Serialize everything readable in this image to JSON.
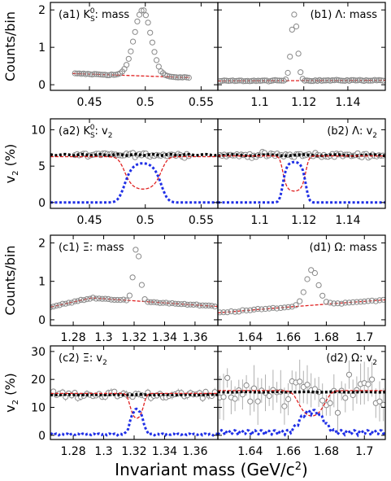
{
  "figure": {
    "xlabel_main": "Invariant mass (GeV/c",
    "xlabel_sup": "2",
    "xlabel_close": ")"
  },
  "row_labels": [
    {
      "main": "Counts/bin",
      "sub": ""
    },
    {
      "main": "v",
      "sub": "2",
      "rest": " (%)"
    },
    {
      "main": "Counts/bin",
      "sub": ""
    },
    {
      "main": "v",
      "sub": "2",
      "rest": " (%)"
    }
  ],
  "colors": {
    "data": "#888888",
    "sig_v2": "#1f2fe6",
    "bkg": "#e02020",
    "total": "#000000"
  },
  "chart_data": [
    {
      "id": "a1",
      "type": "scatter",
      "label_prefix": "(a1) K",
      "label_sub": "S",
      "label_sup": "0",
      "label_suffix": ": mass",
      "xlim": [
        0.415,
        0.565
      ],
      "ylim": [
        -0.15,
        2.2
      ],
      "xticks": [
        0.45,
        0.5,
        0.55
      ],
      "xticklabels": [
        "0.45",
        "0.5",
        "0.55"
      ],
      "yticks": [
        0,
        1,
        2
      ],
      "yticklabels": [
        "0",
        "1",
        "2"
      ],
      "peak": {
        "mu": 0.4976,
        "sigma": 0.0075,
        "amp": 1.76
      },
      "background": {
        "a": 0.3,
        "b": -0.11,
        "x0": 0.435,
        "x1": 0.54
      },
      "points": {
        "x0": 0.437,
        "x1": 0.539,
        "n": 54
      }
    },
    {
      "id": "b1",
      "type": "scatter",
      "label_prefix": "(b1) Λ: mass",
      "xlim": [
        1.081,
        1.157
      ],
      "ylim": [
        -0.15,
        2.2
      ],
      "xticks": [
        1.1,
        1.12,
        1.14
      ],
      "xticklabels": [
        "1.1",
        "1.12",
        "1.14"
      ],
      "yticks": [
        0,
        1,
        2
      ],
      "peak": {
        "mu": 1.1157,
        "sigma": 0.0014,
        "amp": 1.78
      },
      "background": {
        "a": 0.1,
        "b": 0.02,
        "x0": 1.081,
        "x1": 1.157
      },
      "points": {
        "x0": 1.082,
        "x1": 1.156,
        "n": 78
      }
    },
    {
      "id": "a2",
      "type": "line",
      "label_prefix": "(a2) K",
      "label_sub": "S",
      "label_sup": "0",
      "label_suffix": ": v",
      "label_sub2": "2",
      "xlim": [
        0.415,
        0.565
      ],
      "ylim": [
        -0.8,
        11.5
      ],
      "xticks": [
        0.45,
        0.5,
        0.55
      ],
      "xticklabels": [
        "0.45",
        "0.5",
        "0.55"
      ],
      "yticks": [
        0,
        5,
        10
      ],
      "yticklabels": [
        "0",
        "5",
        "10"
      ],
      "v2_total": 6.55,
      "v2_sig": 6.1,
      "v2_bkg": 6.3,
      "peak": {
        "mu": 0.4976,
        "sigma": 0.0075,
        "amp": 1.76
      },
      "background": {
        "a": 0.3,
        "b": -0.11,
        "x0": 0.435,
        "x1": 0.54
      },
      "line_range": [
        0.415,
        0.565
      ],
      "points": {
        "x0": 0.437,
        "x1": 0.539,
        "n": 54,
        "noise": 0.25
      }
    },
    {
      "id": "b2",
      "type": "line",
      "label_prefix": "(b2) Λ: v",
      "label_sub2": "2",
      "xlim": [
        1.081,
        1.157
      ],
      "ylim": [
        -0.8,
        11.5
      ],
      "xticks": [
        1.1,
        1.12,
        1.14
      ],
      "xticklabels": [
        "1.1",
        "1.12",
        "1.14"
      ],
      "yticks": [
        0,
        5,
        10
      ],
      "v2_total": 6.5,
      "v2_sig": 5.9,
      "v2_bkg": 6.4,
      "peak": {
        "mu": 1.1157,
        "sigma": 0.0021,
        "amp": 1.78
      },
      "background": {
        "a": 0.1,
        "b": 0.02,
        "x0": 1.081,
        "x1": 1.157
      },
      "line_range": [
        1.081,
        1.157
      ],
      "points": {
        "x0": 1.082,
        "x1": 1.156,
        "n": 78,
        "noise": 0.3
      }
    },
    {
      "id": "c1",
      "type": "scatter",
      "label_prefix": "(c1) Ξ: mass",
      "xlim": [
        1.265,
        1.375
      ],
      "ylim": [
        -0.15,
        2.2
      ],
      "xticks": [
        1.28,
        1.3,
        1.32,
        1.34,
        1.36
      ],
      "xticklabels": [
        "1.28",
        "1.3",
        "1.32",
        "1.34",
        "1.36"
      ],
      "yticks": [
        0,
        1,
        2
      ],
      "yticklabels": [
        "0",
        "1",
        "2"
      ],
      "peak": {
        "mu": 1.3217,
        "sigma": 0.0021,
        "amp": 1.4
      },
      "background": {
        "shape": "xi"
      },
      "points": {
        "x0": 1.265,
        "x1": 1.373,
        "n": 55
      }
    },
    {
      "id": "d1",
      "type": "scatter",
      "label_prefix": "(d1) Ω: mass",
      "xlim": [
        1.623,
        1.711
      ],
      "ylim": [
        -0.15,
        2.2
      ],
      "xticks": [
        1.64,
        1.66,
        1.68,
        1.7
      ],
      "xticklabels": [
        "1.64",
        "1.66",
        "1.68",
        "1.7"
      ],
      "yticks": [
        0,
        1,
        2
      ],
      "peak": {
        "mu": 1.6725,
        "sigma": 0.0033,
        "amp": 0.92
      },
      "background": {
        "shape": "omega"
      },
      "points": {
        "x0": 1.624,
        "x1": 1.71,
        "n": 44
      }
    },
    {
      "id": "c2",
      "type": "line",
      "label_prefix": "(c2) Ξ: v",
      "label_sub2": "2",
      "xlim": [
        1.265,
        1.375
      ],
      "ylim": [
        -1.5,
        32
      ],
      "xticks": [
        1.28,
        1.3,
        1.32,
        1.34,
        1.36
      ],
      "xticklabels": [
        "1.28",
        "1.3",
        "1.32",
        "1.34",
        "1.36"
      ],
      "yticks": [
        0,
        10,
        20,
        30
      ],
      "yticklabels": [
        "0",
        "10",
        "20",
        "30"
      ],
      "v2_total": 14.5,
      "v2_sig": 12.0,
      "v2_bkg": 15.0,
      "peak": {
        "mu": 1.3217,
        "sigma": 0.0025,
        "amp": 1.4
      },
      "background": {
        "shape": "xi"
      },
      "line_range": [
        1.265,
        1.375
      ],
      "points": {
        "x0": 1.265,
        "x1": 1.373,
        "n": 55,
        "noise": 1.2
      },
      "sig_wiggle": 1.0
    },
    {
      "id": "d2",
      "type": "line",
      "label_prefix": "(d2) Ω: v",
      "label_sub2": "2",
      "xlim": [
        1.623,
        1.711
      ],
      "ylim": [
        -1.5,
        32
      ],
      "xticks": [
        1.64,
        1.66,
        1.68,
        1.7
      ],
      "xticklabels": [
        "1.64",
        "1.66",
        "1.68",
        "1.7"
      ],
      "yticks": [
        0,
        10,
        20,
        30
      ],
      "v2_total": 15.5,
      "v2_sig": 10.5,
      "v2_bkg": 16.0,
      "peak": {
        "mu": 1.6725,
        "sigma": 0.004,
        "amp": 0.92
      },
      "background": {
        "shape": "omega"
      },
      "line_range": [
        1.623,
        1.711
      ],
      "points": {
        "x0": 1.624,
        "x1": 1.71,
        "n": 44,
        "noise": 6.5
      },
      "sig_wiggle": 3.0
    }
  ]
}
